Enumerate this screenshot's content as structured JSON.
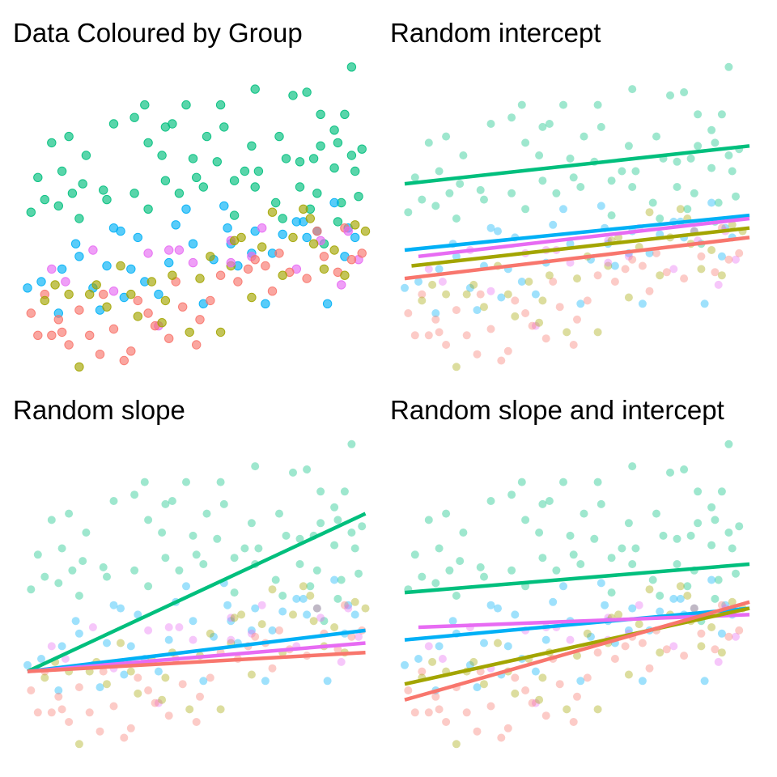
{
  "panels": [
    {
      "title": "Data Coloured by Group",
      "kind": "scatter",
      "fits": null
    },
    {
      "title": "Random intercept",
      "kind": "scatter+lines",
      "fits": "random_intercept"
    },
    {
      "title": "Random slope",
      "kind": "scatter+lines",
      "fits": "random_slope"
    },
    {
      "title": "Random slope and intercept",
      "kind": "scatter+lines",
      "fits": "random_slope_intercept"
    }
  ],
  "chart_data": {
    "type": "scatter",
    "xlim": [
      0,
      10
    ],
    "ylim": [
      0,
      10
    ],
    "grid": false,
    "legend": "none",
    "groups": [
      {
        "color": "#F8766D"
      },
      {
        "color": "#A3A500"
      },
      {
        "color": "#00BF7D"
      },
      {
        "color": "#00B0F6"
      },
      {
        "color": "#E76BF3"
      }
    ],
    "points": [
      {
        "g": 2,
        "x": 9.4,
        "y": 9.8
      },
      {
        "g": 2,
        "x": 6.6,
        "y": 9.1
      },
      {
        "g": 2,
        "x": 7.7,
        "y": 8.9
      },
      {
        "g": 2,
        "x": 8.1,
        "y": 9.0
      },
      {
        "g": 2,
        "x": 5.6,
        "y": 8.6
      },
      {
        "g": 2,
        "x": 3.4,
        "y": 8.6
      },
      {
        "g": 2,
        "x": 4.6,
        "y": 8.6
      },
      {
        "g": 2,
        "x": 5.7,
        "y": 7.9
      },
      {
        "g": 2,
        "x": 3.1,
        "y": 8.2
      },
      {
        "g": 2,
        "x": 2.5,
        "y": 8.0
      },
      {
        "g": 2,
        "x": 4.0,
        "y": 7.9
      },
      {
        "g": 2,
        "x": 4.2,
        "y": 8.0
      },
      {
        "g": 2,
        "x": 5.2,
        "y": 7.6
      },
      {
        "g": 2,
        "x": 7.3,
        "y": 7.6
      },
      {
        "g": 2,
        "x": 8.5,
        "y": 8.3
      },
      {
        "g": 2,
        "x": 9.2,
        "y": 8.3
      },
      {
        "g": 2,
        "x": 8.9,
        "y": 7.8
      },
      {
        "g": 2,
        "x": 9.0,
        "y": 7.4
      },
      {
        "g": 2,
        "x": 9.7,
        "y": 7.2
      },
      {
        "g": 2,
        "x": 0.7,
        "y": 7.4
      },
      {
        "g": 2,
        "x": 1.2,
        "y": 7.6
      },
      {
        "g": 2,
        "x": 1.7,
        "y": 7.0
      },
      {
        "g": 2,
        "x": 3.5,
        "y": 7.4
      },
      {
        "g": 2,
        "x": 3.9,
        "y": 7.0
      },
      {
        "g": 2,
        "x": 4.8,
        "y": 6.9
      },
      {
        "g": 2,
        "x": 5.5,
        "y": 6.8
      },
      {
        "g": 2,
        "x": 6.3,
        "y": 6.5
      },
      {
        "g": 2,
        "x": 6.7,
        "y": 6.5
      },
      {
        "g": 2,
        "x": 7.5,
        "y": 6.9
      },
      {
        "g": 2,
        "x": 8.3,
        "y": 6.9
      },
      {
        "g": 2,
        "x": 8.9,
        "y": 6.6
      },
      {
        "g": 2,
        "x": 9.5,
        "y": 6.5
      },
      {
        "g": 2,
        "x": 0.3,
        "y": 6.3
      },
      {
        "g": 2,
        "x": 1.0,
        "y": 6.5
      },
      {
        "g": 2,
        "x": 1.6,
        "y": 6.1
      },
      {
        "g": 2,
        "x": 2.2,
        "y": 5.9
      },
      {
        "g": 2,
        "x": 3.1,
        "y": 5.8
      },
      {
        "g": 2,
        "x": 4.4,
        "y": 5.8
      },
      {
        "g": 2,
        "x": 5.1,
        "y": 6.0
      },
      {
        "g": 2,
        "x": 6.6,
        "y": 6.0
      },
      {
        "g": 2,
        "x": 7.2,
        "y": 5.5
      },
      {
        "g": 2,
        "x": 7.9,
        "y": 6.0
      },
      {
        "g": 2,
        "x": 8.4,
        "y": 5.8
      },
      {
        "g": 2,
        "x": 9.1,
        "y": 5.5
      },
      {
        "g": 2,
        "x": 9.6,
        "y": 5.7
      },
      {
        "g": 2,
        "x": 0.1,
        "y": 5.2
      },
      {
        "g": 2,
        "x": 0.9,
        "y": 5.4
      },
      {
        "g": 2,
        "x": 1.5,
        "y": 5.0
      },
      {
        "g": 2,
        "x": 3.5,
        "y": 5.3
      },
      {
        "g": 2,
        "x": 6.0,
        "y": 5.1
      },
      {
        "g": 2,
        "x": 7.4,
        "y": 5.0
      },
      {
        "g": 2,
        "x": 8.2,
        "y": 5.3
      },
      {
        "g": 2,
        "x": 9.0,
        "y": 4.9
      },
      {
        "g": 2,
        "x": 8.6,
        "y": 4.2
      },
      {
        "g": 2,
        "x": 0.5,
        "y": 5.6
      },
      {
        "g": 2,
        "x": 1.3,
        "y": 5.8
      },
      {
        "g": 2,
        "x": 2.3,
        "y": 5.6
      },
      {
        "g": 2,
        "x": 4.0,
        "y": 6.2
      },
      {
        "g": 2,
        "x": 4.9,
        "y": 6.3
      },
      {
        "g": 2,
        "x": 6.0,
        "y": 6.2
      },
      {
        "g": 2,
        "x": 7.9,
        "y": 6.8
      },
      {
        "g": 2,
        "x": 8.5,
        "y": 7.3
      },
      {
        "g": 2,
        "x": 9.4,
        "y": 7.0
      },
      {
        "g": 2,
        "x": 6.5,
        "y": 7.3
      },
      {
        "g": 3,
        "x": 0.0,
        "y": 2.8
      },
      {
        "g": 3,
        "x": 0.4,
        "y": 3.0
      },
      {
        "g": 3,
        "x": 1.0,
        "y": 3.4
      },
      {
        "g": 3,
        "x": 1.5,
        "y": 3.8
      },
      {
        "g": 3,
        "x": 1.9,
        "y": 2.8
      },
      {
        "g": 3,
        "x": 2.3,
        "y": 3.5
      },
      {
        "g": 3,
        "x": 2.5,
        "y": 4.7
      },
      {
        "g": 3,
        "x": 2.8,
        "y": 2.5
      },
      {
        "g": 3,
        "x": 3.4,
        "y": 3.0
      },
      {
        "g": 3,
        "x": 3.8,
        "y": 2.6
      },
      {
        "g": 3,
        "x": 4.3,
        "y": 4.8
      },
      {
        "g": 3,
        "x": 4.8,
        "y": 4.2
      },
      {
        "g": 3,
        "x": 5.1,
        "y": 2.3
      },
      {
        "g": 3,
        "x": 5.4,
        "y": 3.7
      },
      {
        "g": 3,
        "x": 5.8,
        "y": 4.7
      },
      {
        "g": 3,
        "x": 6.1,
        "y": 3.5
      },
      {
        "g": 3,
        "x": 6.5,
        "y": 3.9
      },
      {
        "g": 3,
        "x": 6.9,
        "y": 2.3
      },
      {
        "g": 3,
        "x": 7.4,
        "y": 4.5
      },
      {
        "g": 3,
        "x": 8.0,
        "y": 4.9
      },
      {
        "g": 3,
        "x": 8.4,
        "y": 4.6
      },
      {
        "g": 3,
        "x": 8.7,
        "y": 2.3
      },
      {
        "g": 3,
        "x": 9.2,
        "y": 3.8
      },
      {
        "g": 3,
        "x": 9.5,
        "y": 4.4
      },
      {
        "g": 3,
        "x": 2.1,
        "y": 2.1
      },
      {
        "g": 3,
        "x": 0.9,
        "y": 2.0
      },
      {
        "g": 3,
        "x": 3.2,
        "y": 4.4
      },
      {
        "g": 3,
        "x": 7.1,
        "y": 3.9
      },
      {
        "g": 3,
        "x": 4.6,
        "y": 5.3
      },
      {
        "g": 3,
        "x": 5.7,
        "y": 5.4
      },
      {
        "g": 3,
        "x": 6.6,
        "y": 4.6
      },
      {
        "g": 3,
        "x": 7.8,
        "y": 4.9
      },
      {
        "g": 3,
        "x": 8.9,
        "y": 5.5
      },
      {
        "g": 3,
        "x": 9.3,
        "y": 4.7
      },
      {
        "g": 3,
        "x": 1.4,
        "y": 4.2
      },
      {
        "g": 3,
        "x": 2.7,
        "y": 4.6
      },
      {
        "g": 3,
        "x": 4.1,
        "y": 3.6
      },
      {
        "g": 3,
        "x": 3.0,
        "y": 3.4
      },
      {
        "g": 3,
        "x": 5.9,
        "y": 4.2
      },
      {
        "g": 3,
        "x": 8.1,
        "y": 4.4
      },
      {
        "g": 4,
        "x": 0.7,
        "y": 3.4
      },
      {
        "g": 4,
        "x": 1.1,
        "y": 3.0
      },
      {
        "g": 4,
        "x": 1.9,
        "y": 4.0
      },
      {
        "g": 4,
        "x": 3.5,
        "y": 3.9
      },
      {
        "g": 4,
        "x": 4.8,
        "y": 3.6
      },
      {
        "g": 4,
        "x": 5.9,
        "y": 4.3
      },
      {
        "g": 4,
        "x": 6.8,
        "y": 4.7
      },
      {
        "g": 4,
        "x": 8.5,
        "y": 4.3
      },
      {
        "g": 4,
        "x": 9.6,
        "y": 3.7
      },
      {
        "g": 4,
        "x": 3.8,
        "y": 1.6
      },
      {
        "g": 4,
        "x": 4.4,
        "y": 4.0
      },
      {
        "g": 4,
        "x": 2.5,
        "y": 2.7
      },
      {
        "g": 4,
        "x": 6.5,
        "y": 3.8
      },
      {
        "g": 4,
        "x": 9.1,
        "y": 2.9
      },
      {
        "g": 4,
        "x": 7.8,
        "y": 3.4
      },
      {
        "g": 0,
        "x": 0.1,
        "y": 2.0
      },
      {
        "g": 0,
        "x": 0.3,
        "y": 1.3
      },
      {
        "g": 0,
        "x": 0.7,
        "y": 1.3
      },
      {
        "g": 0,
        "x": 1.0,
        "y": 1.4
      },
      {
        "g": 0,
        "x": 1.2,
        "y": 1.0
      },
      {
        "g": 0,
        "x": 1.8,
        "y": 1.3
      },
      {
        "g": 0,
        "x": 2.1,
        "y": 0.7
      },
      {
        "g": 0,
        "x": 2.5,
        "y": 1.5
      },
      {
        "g": 0,
        "x": 2.8,
        "y": 0.5
      },
      {
        "g": 0,
        "x": 3.0,
        "y": 0.8
      },
      {
        "g": 0,
        "x": 3.7,
        "y": 1.6
      },
      {
        "g": 0,
        "x": 4.1,
        "y": 1.2
      },
      {
        "g": 0,
        "x": 4.5,
        "y": 2.2
      },
      {
        "g": 0,
        "x": 5.0,
        "y": 1.8
      },
      {
        "g": 0,
        "x": 5.6,
        "y": 3.2
      },
      {
        "g": 0,
        "x": 6.1,
        "y": 3.0
      },
      {
        "g": 0,
        "x": 6.6,
        "y": 3.7
      },
      {
        "g": 0,
        "x": 7.1,
        "y": 2.7
      },
      {
        "g": 0,
        "x": 7.6,
        "y": 3.3
      },
      {
        "g": 0,
        "x": 8.1,
        "y": 3.1
      },
      {
        "g": 0,
        "x": 8.6,
        "y": 3.8
      },
      {
        "g": 0,
        "x": 9.0,
        "y": 3.3
      },
      {
        "g": 0,
        "x": 9.4,
        "y": 3.7
      },
      {
        "g": 0,
        "x": 9.7,
        "y": 3.9
      },
      {
        "g": 0,
        "x": 0.5,
        "y": 2.6
      },
      {
        "g": 0,
        "x": 1.5,
        "y": 2.1
      },
      {
        "g": 0,
        "x": 2.2,
        "y": 2.6
      },
      {
        "g": 0,
        "x": 3.2,
        "y": 2.4
      },
      {
        "g": 0,
        "x": 4.3,
        "y": 3.0
      },
      {
        "g": 0,
        "x": 5.3,
        "y": 2.4
      },
      {
        "g": 0,
        "x": 6.4,
        "y": 3.4
      },
      {
        "g": 0,
        "x": 7.3,
        "y": 3.9
      },
      {
        "g": 0,
        "x": 8.4,
        "y": 4.6
      },
      {
        "g": 0,
        "x": 9.2,
        "y": 4.7
      },
      {
        "g": 0,
        "x": 4.9,
        "y": 1.0
      },
      {
        "g": 0,
        "x": 0.9,
        "y": 1.8
      },
      {
        "g": 0,
        "x": 3.5,
        "y": 2.0
      },
      {
        "g": 0,
        "x": 6.9,
        "y": 3.5
      },
      {
        "g": 1,
        "x": 0.5,
        "y": 2.4
      },
      {
        "g": 1,
        "x": 0.8,
        "y": 2.9
      },
      {
        "g": 1,
        "x": 1.2,
        "y": 2.6
      },
      {
        "g": 1,
        "x": 1.5,
        "y": 0.3
      },
      {
        "g": 1,
        "x": 2.0,
        "y": 2.9
      },
      {
        "g": 1,
        "x": 2.3,
        "y": 2.2
      },
      {
        "g": 1,
        "x": 2.7,
        "y": 3.5
      },
      {
        "g": 1,
        "x": 3.0,
        "y": 2.6
      },
      {
        "g": 1,
        "x": 3.2,
        "y": 1.9
      },
      {
        "g": 1,
        "x": 3.6,
        "y": 3.0
      },
      {
        "g": 1,
        "x": 3.9,
        "y": 1.7
      },
      {
        "g": 1,
        "x": 4.2,
        "y": 3.2
      },
      {
        "g": 1,
        "x": 4.7,
        "y": 1.4
      },
      {
        "g": 1,
        "x": 5.0,
        "y": 3.1
      },
      {
        "g": 1,
        "x": 5.3,
        "y": 3.8
      },
      {
        "g": 1,
        "x": 5.6,
        "y": 1.4
      },
      {
        "g": 1,
        "x": 5.9,
        "y": 3.5
      },
      {
        "g": 1,
        "x": 6.2,
        "y": 4.4
      },
      {
        "g": 1,
        "x": 6.5,
        "y": 2.5
      },
      {
        "g": 1,
        "x": 6.8,
        "y": 4.1
      },
      {
        "g": 1,
        "x": 7.1,
        "y": 5.2
      },
      {
        "g": 1,
        "x": 7.4,
        "y": 3.2
      },
      {
        "g": 1,
        "x": 7.7,
        "y": 4.4
      },
      {
        "g": 1,
        "x": 8.0,
        "y": 5.3
      },
      {
        "g": 1,
        "x": 8.3,
        "y": 4.2
      },
      {
        "g": 1,
        "x": 8.6,
        "y": 3.4
      },
      {
        "g": 1,
        "x": 8.9,
        "y": 4.0
      },
      {
        "g": 1,
        "x": 9.2,
        "y": 3.2
      },
      {
        "g": 1,
        "x": 9.5,
        "y": 4.8
      },
      {
        "g": 1,
        "x": 9.8,
        "y": 4.6
      },
      {
        "g": 1,
        "x": 1.8,
        "y": 2.6
      },
      {
        "g": 1,
        "x": 4.0,
        "y": 2.4
      },
      {
        "g": 1,
        "x": 6.0,
        "y": 4.3
      },
      {
        "g": 1,
        "x": 8.2,
        "y": 5.0
      },
      {
        "g": 4,
        "x": 4.1,
        "y": 4.0
      },
      {
        "g": 4,
        "x": 5.9,
        "y": 3.6
      },
      {
        "g": 4,
        "x": 9.3,
        "y": 4.6
      }
    ],
    "fits": {
      "random_intercept": [
        {
          "g": 2,
          "x": [
            0,
            10
          ],
          "y": [
            6.1,
            7.3
          ]
        },
        {
          "g": 3,
          "x": [
            0,
            10
          ],
          "y": [
            4.0,
            5.1
          ]
        },
        {
          "g": 4,
          "x": [
            0.4,
            10
          ],
          "y": [
            3.8,
            5.0
          ]
        },
        {
          "g": 1,
          "x": [
            0.2,
            10
          ],
          "y": [
            3.5,
            4.7
          ]
        },
        {
          "g": 0,
          "x": [
            0,
            10
          ],
          "y": [
            3.1,
            4.4
          ]
        }
      ],
      "random_slope": [
        {
          "g": 2,
          "x": [
            0,
            9.8
          ],
          "y": [
            2.6,
            7.6
          ]
        },
        {
          "g": 3,
          "x": [
            0,
            9.8
          ],
          "y": [
            2.6,
            3.9
          ]
        },
        {
          "g": 4,
          "x": [
            0,
            9.8
          ],
          "y": [
            2.6,
            3.5
          ]
        },
        {
          "g": 0,
          "x": [
            0,
            9.8
          ],
          "y": [
            2.6,
            3.2
          ]
        }
      ],
      "random_slope_intercept": [
        {
          "g": 2,
          "x": [
            0,
            10
          ],
          "y": [
            5.1,
            6.0
          ]
        },
        {
          "g": 3,
          "x": [
            0,
            10
          ],
          "y": [
            3.6,
            4.6
          ]
        },
        {
          "g": 4,
          "x": [
            0.4,
            10
          ],
          "y": [
            4.0,
            4.4
          ]
        },
        {
          "g": 1,
          "x": [
            0,
            10
          ],
          "y": [
            2.2,
            4.6
          ]
        },
        {
          "g": 0,
          "x": [
            0,
            10
          ],
          "y": [
            1.7,
            4.8
          ]
        }
      ]
    }
  }
}
